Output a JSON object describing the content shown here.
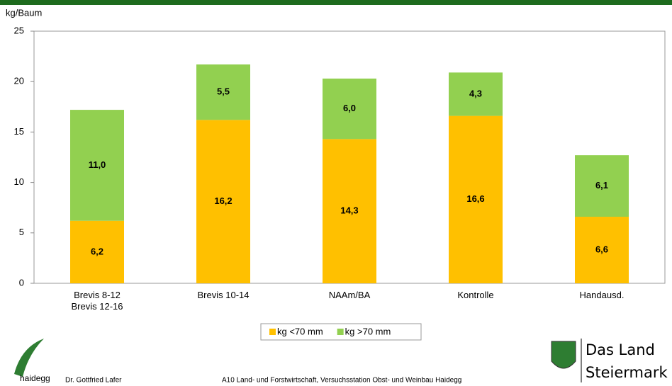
{
  "chart_data": {
    "type": "stacked-bar",
    "y_label": "kg/Baum",
    "categories": [
      "Brevis 8-12\nBrevis 12-16",
      "Brevis 10-14",
      "NAAm/BA",
      "Kontrolle",
      "Handausd."
    ],
    "series": [
      {
        "name": "kg <70 mm",
        "color": "#ffc000",
        "values": [
          6.2,
          16.2,
          14.3,
          16.6,
          6.6
        ],
        "value_labels": [
          "6,2",
          "16,2",
          "14,3",
          "16,6",
          "6,6"
        ]
      },
      {
        "name": "kg >70 mm",
        "color": "#92d050",
        "values": [
          11.0,
          5.5,
          6.0,
          4.3,
          6.1
        ],
        "value_labels": [
          "11,0",
          "5,5",
          "6,0",
          "4,3",
          "6,1"
        ]
      }
    ],
    "ylim": [
      0,
      25
    ],
    "yticks": [
      0,
      5,
      10,
      15,
      20,
      25
    ],
    "grid": false,
    "legend": "bottom"
  },
  "footer": {
    "brand": "haidegg",
    "author": "Dr. Gottfried Lafer",
    "institution": "A10 Land- und Forstwirtschaft, Versuchsstation Obst- und Weinbau Haidegg",
    "logo_line1": "Das Land",
    "logo_line2": "Steiermark"
  }
}
